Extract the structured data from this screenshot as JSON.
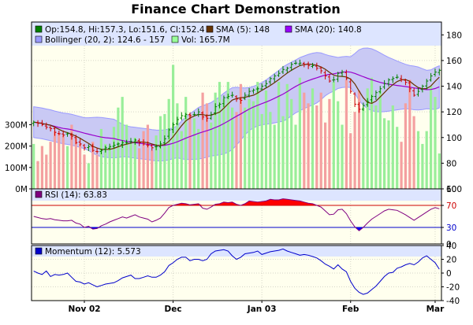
{
  "chart_data": {
    "type": "finance",
    "title": "Finance Chart Demonstration",
    "x_labels": [
      {
        "i": 12,
        "label": "Nov 02"
      },
      {
        "i": 33,
        "label": "Dec"
      },
      {
        "i": 54,
        "label": "Jan 03"
      },
      {
        "i": 75,
        "label": "Feb"
      },
      {
        "i": 95,
        "label": "Mar"
      }
    ],
    "n_bars": 97,
    "main": {
      "ylim": [
        60,
        190
      ],
      "yticks": [
        60,
        80,
        100,
        120,
        140,
        160,
        180
      ],
      "vol_ticks": [
        {
          "value": 0,
          "label": "0M"
        },
        {
          "value": 100,
          "label": "100M"
        },
        {
          "value": 200,
          "label": "200M"
        },
        {
          "value": 300,
          "label": "300M"
        }
      ],
      "vol_max": 780,
      "legend_row1": [
        {
          "label": "Op:154.8, Hi:157.3, Lo:151.6, Cl:152.4",
          "color": "#008000"
        },
        {
          "label": "SMA (5): 148",
          "color": "#663300"
        },
        {
          "label": "SMA (20): 140.8",
          "color": "#9900ff"
        }
      ],
      "legend_row2": [
        {
          "label": "Bollinger (20, 2): 124.6 - 157",
          "color": "#9999ff"
        },
        {
          "label": "Vol: 165.7M",
          "color": "#99ff99"
        }
      ],
      "colors": {
        "up": "#008000",
        "down": "#cc0000",
        "sma5": "#663300",
        "sma20": "#9900cc",
        "band": "#c9c9f4",
        "band_edge": "#9999ff",
        "vol_up": "#99ee99",
        "vol_down": "#f4a0a0",
        "bg": "#ffffee"
      }
    },
    "rsi": {
      "label": "RSI (14): 63.83",
      "color": "#800080",
      "ylim": [
        0,
        100
      ],
      "yticks": [
        0,
        30,
        70,
        100
      ],
      "upper": 70,
      "lower": 30
    },
    "momentum": {
      "label": "Momentum (12): 5.573",
      "color": "#0000cc",
      "ylim": [
        -40,
        40
      ],
      "yticks": [
        -40,
        -20,
        0,
        20,
        40
      ]
    },
    "close": [
      112,
      111,
      110,
      108,
      107,
      104,
      103,
      102,
      103,
      101,
      96,
      95,
      92,
      93,
      90,
      89,
      90,
      92,
      93,
      94,
      95,
      96,
      96,
      97,
      98,
      96,
      95,
      94,
      92,
      93,
      95,
      99,
      106,
      110,
      114,
      117,
      118,
      117,
      118,
      120,
      116,
      115,
      118,
      124,
      126,
      131,
      132,
      133,
      130,
      129,
      133,
      136,
      137,
      138,
      140,
      142,
      146,
      148,
      150,
      153,
      154,
      157,
      158,
      158,
      157,
      156,
      156,
      154,
      152,
      148,
      144,
      145,
      150,
      151,
      146,
      136,
      126,
      122,
      125,
      128,
      132,
      135,
      138,
      142,
      145,
      146,
      147,
      145,
      143,
      138,
      133,
      136,
      140,
      144,
      148,
      151,
      152.4
    ],
    "volume": [
      210,
      130,
      200,
      160,
      220,
      270,
      260,
      250,
      200,
      300,
      240,
      210,
      160,
      120,
      220,
      160,
      280,
      210,
      200,
      290,
      380,
      430,
      300,
      210,
      240,
      190,
      270,
      300,
      180,
      250,
      340,
      350,
      420,
      580,
      400,
      270,
      430,
      350,
      330,
      280,
      450,
      400,
      310,
      450,
      500,
      420,
      500,
      380,
      360,
      490,
      380,
      420,
      410,
      500,
      350,
      460,
      360,
      300,
      500,
      340,
      490,
      420,
      300,
      520,
      450,
      400,
      470,
      390,
      450,
      310,
      420,
      500,
      410,
      300,
      510,
      260,
      360,
      460,
      380,
      470,
      520,
      390,
      460,
      330,
      320,
      390,
      290,
      220,
      400,
      510,
      340,
      270,
      210,
      270,
      480,
      430,
      165.7
    ],
    "rsi_values": [
      50,
      48,
      46,
      45,
      46,
      44,
      43,
      42,
      42,
      43,
      38,
      36,
      30,
      32,
      27,
      28,
      33,
      36,
      40,
      43,
      46,
      49,
      47,
      50,
      53,
      49,
      47,
      45,
      40,
      43,
      47,
      56,
      66,
      70,
      72,
      74,
      73,
      71,
      72,
      73,
      65,
      63,
      67,
      72,
      73,
      76,
      75,
      76,
      72,
      70,
      73,
      78,
      77,
      76,
      77,
      78,
      81,
      80,
      80,
      82,
      81,
      80,
      79,
      78,
      76,
      74,
      73,
      70,
      67,
      60,
      53,
      54,
      62,
      63,
      55,
      42,
      31,
      24,
      30,
      38,
      45,
      50,
      55,
      60,
      63,
      62,
      61,
      57,
      53,
      48,
      43,
      48,
      53,
      58,
      63,
      66,
      63.83
    ],
    "momentum_values": [
      3,
      0,
      -2,
      3,
      -5,
      -2,
      -3,
      -2,
      0,
      -6,
      -12,
      -13,
      -16,
      -14,
      -17,
      -20,
      -18,
      -16,
      -15,
      -14,
      -11,
      -7,
      -5,
      -3,
      -8,
      -8,
      -6,
      -4,
      -6,
      -6,
      -3,
      2,
      11,
      15,
      20,
      23,
      23,
      18,
      20,
      20,
      18,
      20,
      28,
      32,
      33,
      34,
      32,
      25,
      20,
      23,
      28,
      29,
      30,
      32,
      27,
      29,
      31,
      32,
      33,
      35,
      32,
      30,
      28,
      26,
      27,
      26,
      24,
      22,
      18,
      13,
      10,
      6,
      12,
      6,
      2,
      -12,
      -22,
      -28,
      -31,
      -29,
      -24,
      -19,
      -12,
      -5,
      0,
      1,
      7,
      9,
      12,
      14,
      12,
      16,
      22,
      25,
      20,
      15,
      5.573
    ]
  }
}
